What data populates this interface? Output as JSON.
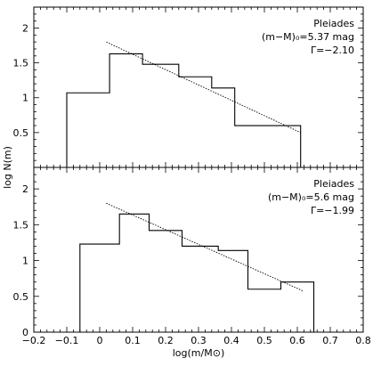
{
  "chart_data": [
    {
      "type": "histogram",
      "annotations": [
        "Pleiades",
        "(m−M)₀=5.37 mag",
        "Γ=−2.10"
      ],
      "ylabel": "log N(m)",
      "xlabel": "",
      "xlim": [
        -0.2,
        0.8
      ],
      "ylim": [
        0,
        2.3
      ],
      "yticks": [
        "0",
        "0.5",
        "1",
        "1.5",
        "2"
      ],
      "bins": [
        {
          "x0": -0.1,
          "x1": 0.03,
          "value": 1.07
        },
        {
          "x0": 0.03,
          "x1": 0.13,
          "value": 1.63
        },
        {
          "x0": 0.13,
          "x1": 0.24,
          "value": 1.48
        },
        {
          "x0": 0.24,
          "x1": 0.34,
          "value": 1.3
        },
        {
          "x0": 0.34,
          "x1": 0.41,
          "value": 1.14
        },
        {
          "x0": 0.41,
          "x1": 0.61,
          "value": 0.6
        }
      ],
      "fit_line": {
        "x": [
          0.02,
          0.61
        ],
        "y": [
          1.8,
          0.5
        ]
      }
    },
    {
      "type": "histogram",
      "annotations": [
        "Pleiades",
        "(m−M)₀=5.6 mag",
        "Γ=−1.99"
      ],
      "ylabel": "",
      "xlabel": "log(m/M⊙)",
      "xlim": [
        -0.2,
        0.8
      ],
      "ylim": [
        0,
        2.3
      ],
      "yticks": [
        "0",
        "0.5",
        "1",
        "1.5",
        "2"
      ],
      "xticks": [
        "−0.2",
        "−0.1",
        "0",
        "0.1",
        "0.2",
        "0.3",
        "0.4",
        "0.5",
        "0.6",
        "0.7",
        "0.8"
      ],
      "bins": [
        {
          "x0": -0.06,
          "x1": 0.06,
          "value": 1.23
        },
        {
          "x0": 0.06,
          "x1": 0.15,
          "value": 1.65
        },
        {
          "x0": 0.15,
          "x1": 0.25,
          "value": 1.42
        },
        {
          "x0": 0.25,
          "x1": 0.36,
          "value": 1.2
        },
        {
          "x0": 0.36,
          "x1": 0.45,
          "value": 1.14
        },
        {
          "x0": 0.45,
          "x1": 0.55,
          "value": 0.6
        },
        {
          "x0": 0.55,
          "x1": 0.65,
          "value": 0.7
        }
      ],
      "fit_line": {
        "x": [
          0.02,
          0.62
        ],
        "y": [
          1.8,
          0.57
        ]
      }
    }
  ]
}
